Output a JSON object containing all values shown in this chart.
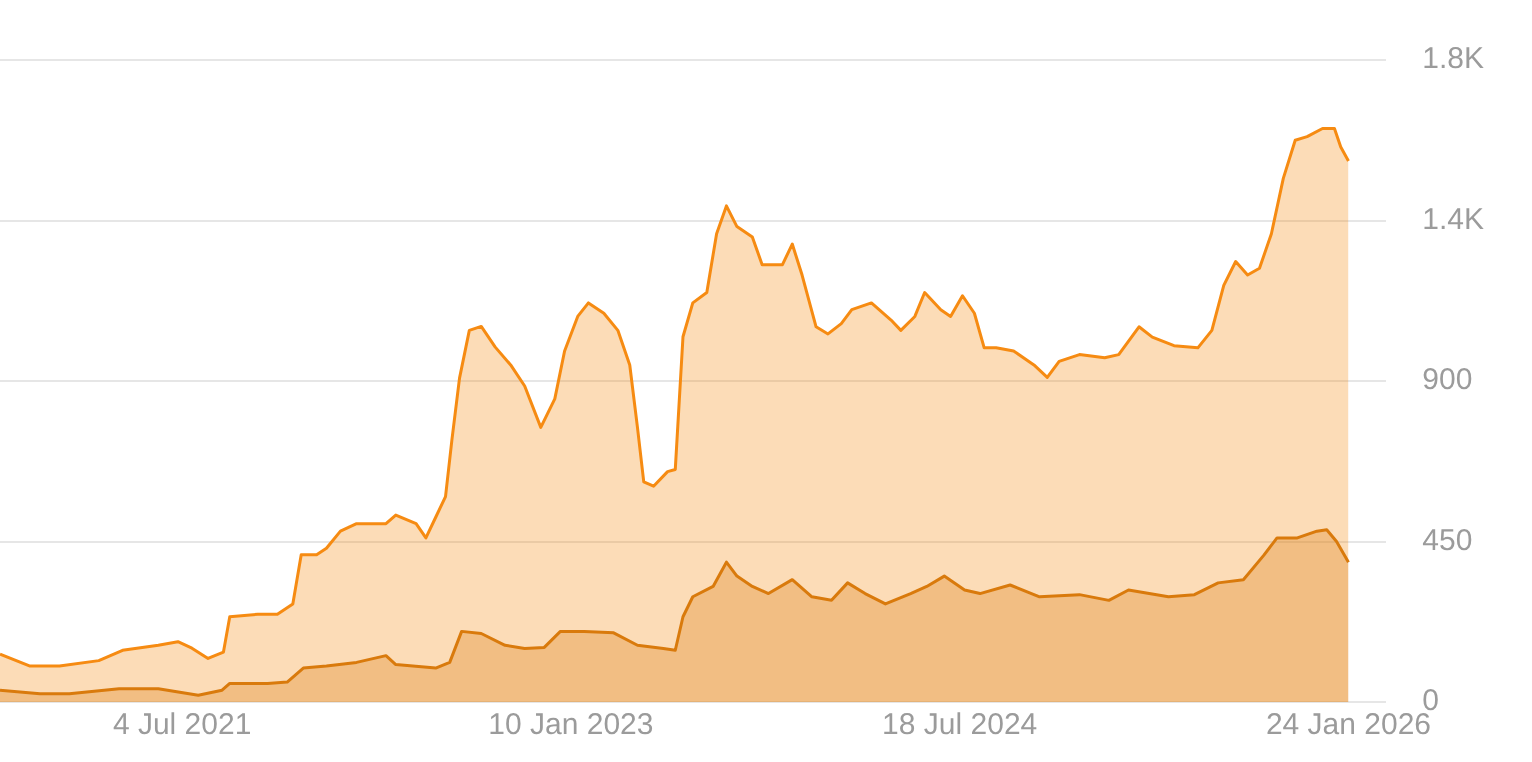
{
  "chart_data": {
    "type": "area",
    "xlim": [
      "2020-10-17",
      "2026-03-19"
    ],
    "xticks": [
      {
        "value": "2021-07-04",
        "label": "4 Jul 2021"
      },
      {
        "value": "2023-01-10",
        "label": "10 Jan 2023"
      },
      {
        "value": "2024-07-18",
        "label": "18 Jul 2024"
      },
      {
        "value": "2026-01-24",
        "label": "24 Jan 2026"
      }
    ],
    "ylim": [
      0,
      1800
    ],
    "yticks": [
      0,
      450,
      900,
      {
        "value": 1350,
        "label": "1.4K"
      },
      {
        "value": 1800,
        "label": "1.8K"
      }
    ],
    "grid": "y",
    "series": [
      {
        "color": "#f68b12",
        "x": [
          "2020-10-17",
          "2020-11-28",
          "2021-01-10",
          "2021-03-07",
          "2021-04-10",
          "2021-05-31",
          "2021-06-28",
          "2021-07-18",
          "2021-08-10",
          "2021-09-01",
          "2021-09-10",
          "2021-10-20",
          "2021-11-17",
          "2021-12-09",
          "2021-12-21",
          "2022-01-12",
          "2022-01-26",
          "2022-02-15",
          "2022-03-10",
          "2022-04-21",
          "2022-05-05",
          "2022-06-03",
          "2022-06-17",
          "2022-07-01",
          "2022-07-15",
          "2022-07-24",
          "2022-08-04",
          "2022-08-18",
          "2022-09-04",
          "2022-09-24",
          "2022-10-16",
          "2022-11-05",
          "2022-11-28",
          "2022-12-18",
          "2023-01-01",
          "2023-01-20",
          "2023-02-04",
          "2023-02-26",
          "2023-03-18",
          "2023-04-04",
          "2023-04-15",
          "2023-04-24",
          "2023-05-08",
          "2023-05-28",
          "2023-06-08",
          "2023-06-19",
          "2023-07-03",
          "2023-07-23",
          "2023-08-06",
          "2023-08-20",
          "2023-09-04",
          "2023-09-26",
          "2023-10-10",
          "2023-11-08",
          "2023-11-22",
          "2023-12-06",
          "2023-12-26",
          "2024-01-12",
          "2024-01-31",
          "2024-02-15",
          "2024-03-14",
          "2024-04-11",
          "2024-04-25",
          "2024-05-15",
          "2024-05-29",
          "2024-06-21",
          "2024-07-05",
          "2024-07-22",
          "2024-08-08",
          "2024-08-22",
          "2024-09-08",
          "2024-10-03",
          "2024-11-01",
          "2024-11-20",
          "2024-12-07",
          "2025-01-05",
          "2025-02-10",
          "2025-03-02",
          "2025-03-31",
          "2025-04-19",
          "2025-05-20",
          "2025-06-23",
          "2025-07-13",
          "2025-07-30",
          "2025-08-16",
          "2025-09-02",
          "2025-09-19",
          "2025-10-06",
          "2025-10-23",
          "2025-11-09",
          "2025-11-26",
          "2025-12-18",
          "2026-01-04",
          "2026-01-13",
          "2026-01-24"
        ],
        "values": [
          134,
          101,
          101,
          116,
          145,
          159,
          169,
          151,
          122,
          140,
          239,
          246,
          246,
          275,
          413,
          413,
          431,
          479,
          500,
          500,
          524,
          500,
          460,
          518,
          576,
          733,
          908,
          1042,
          1053,
          995,
          945,
          886,
          770,
          850,
          984,
          1082,
          1119,
          1090,
          1042,
          945,
          770,
          617,
          605,
          646,
          652,
          1024,
          1119,
          1148,
          1313,
          1391,
          1333,
          1304,
          1226,
          1226,
          1284,
          1197,
          1052,
          1032,
          1061,
          1100,
          1119,
          1071,
          1042,
          1081,
          1148,
          1100,
          1081,
          1139,
          1090,
          993,
          993,
          984,
          945,
          910,
          955,
          974,
          965,
          974,
          1052,
          1023,
          999,
          993,
          1042,
          1168,
          1235,
          1197,
          1216,
          1313,
          1468,
          1575,
          1585,
          1608,
          1608,
          1556,
          1517
        ]
      },
      {
        "color": "#d97a0c",
        "x": [
          "2020-10-17",
          "2020-12-13",
          "2021-01-24",
          "2021-04-05",
          "2021-05-31",
          "2021-07-27",
          "2021-08-30",
          "2021-09-10",
          "2021-11-03",
          "2021-12-01",
          "2021-12-24",
          "2022-01-26",
          "2022-03-10",
          "2022-04-21",
          "2022-05-05",
          "2022-07-01",
          "2022-07-21",
          "2022-08-07",
          "2022-09-04",
          "2022-10-08",
          "2022-11-05",
          "2022-12-03",
          "2022-12-26",
          "2023-01-29",
          "2023-03-12",
          "2023-04-15",
          "2023-05-22",
          "2023-06-08",
          "2023-06-19",
          "2023-07-03",
          "2023-08-01",
          "2023-08-20",
          "2023-09-04",
          "2023-09-26",
          "2023-10-19",
          "2023-11-22",
          "2023-12-20",
          "2024-01-17",
          "2024-02-09",
          "2024-03-05",
          "2024-04-03",
          "2024-05-09",
          "2024-06-01",
          "2024-06-26",
          "2024-07-25",
          "2024-08-16",
          "2024-09-28",
          "2024-11-09",
          "2025-01-05",
          "2025-02-16",
          "2025-03-16",
          "2025-05-12",
          "2025-06-18",
          "2025-07-22",
          "2025-08-27",
          "2025-09-25",
          "2025-10-14",
          "2025-11-12",
          "2025-12-10",
          "2025-12-24",
          "2026-01-07",
          "2026-01-24"
        ],
        "values": [
          33,
          23,
          23,
          37,
          37,
          19,
          33,
          52,
          52,
          56,
          95,
          101,
          111,
          130,
          105,
          95,
          111,
          198,
          192,
          159,
          150,
          153,
          198,
          198,
          194,
          159,
          150,
          145,
          239,
          295,
          324,
          392,
          353,
          324,
          304,
          343,
          295,
          285,
          334,
          304,
          275,
          304,
          324,
          353,
          314,
          304,
          328,
          295,
          301,
          285,
          314,
          295,
          301,
          334,
          343,
          411,
          460,
          460,
          479,
          483,
          450,
          392
        ]
      }
    ]
  }
}
